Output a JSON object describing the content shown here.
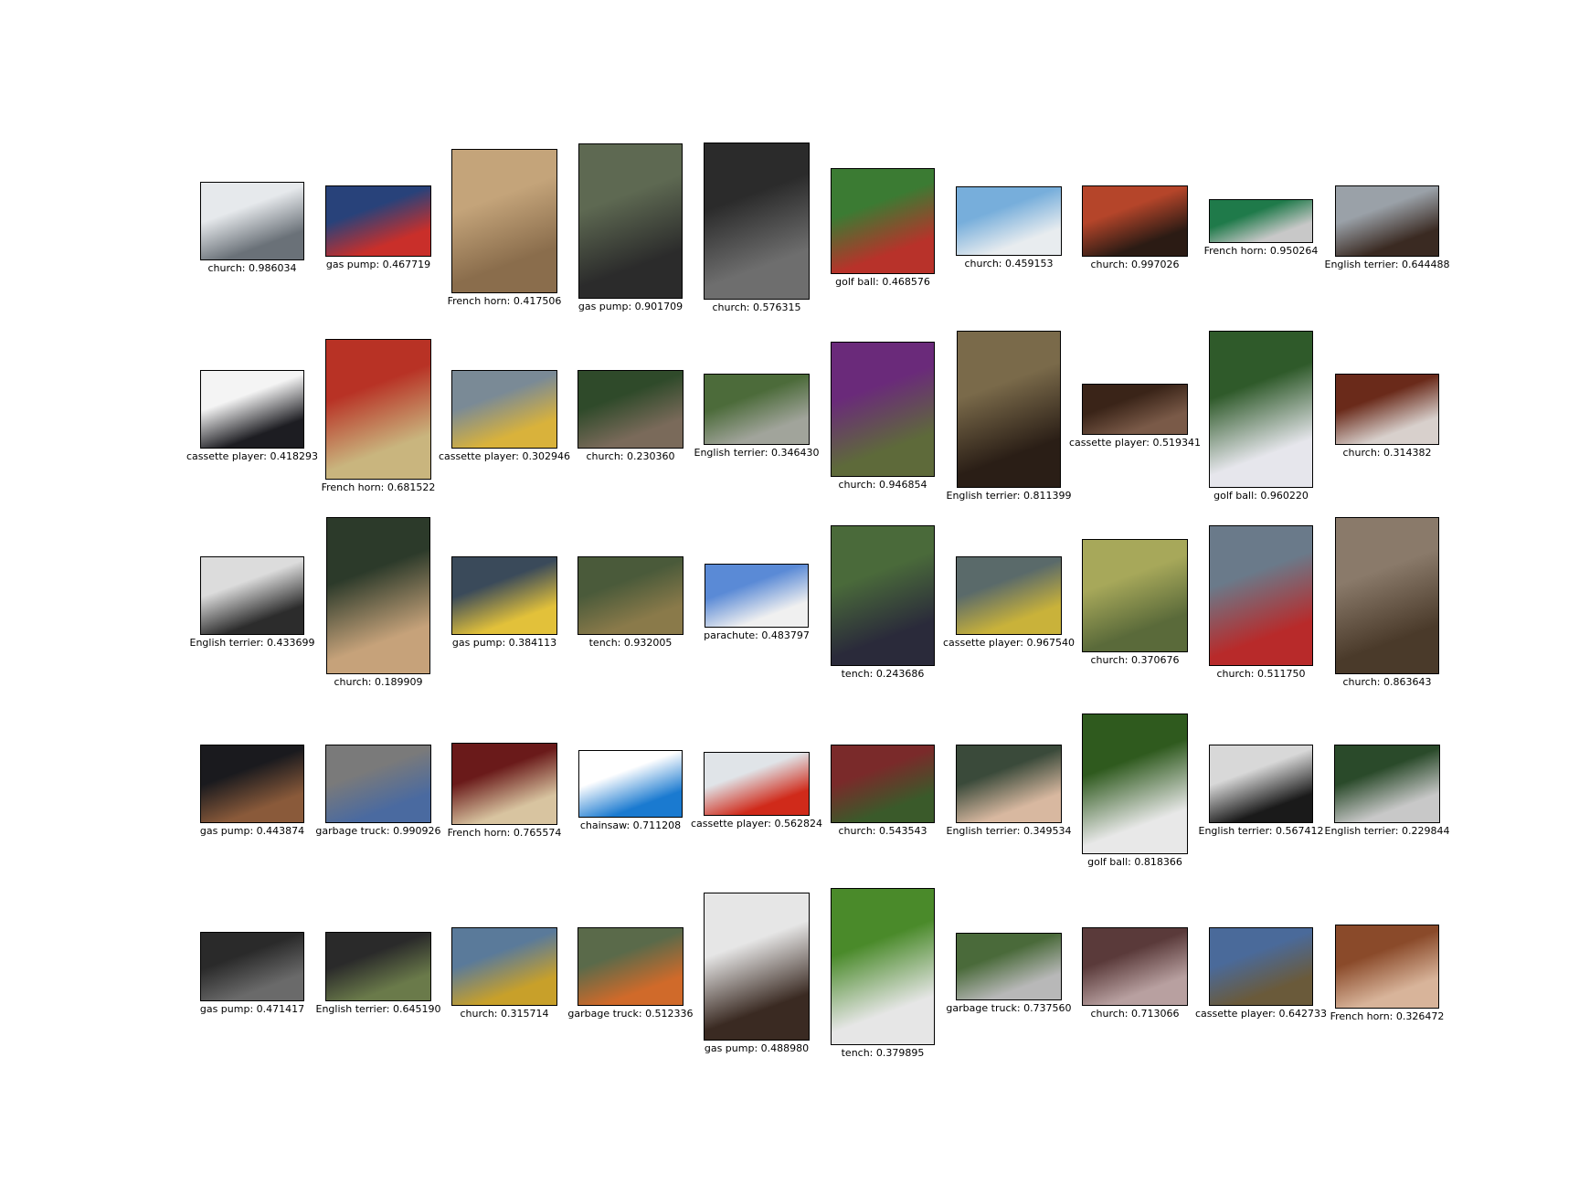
{
  "grid": {
    "rows": [
      [
        {
          "label": "church: 0.986034",
          "image": "garbage-truck-photo",
          "colors": [
            "#e6e9ec",
            "#6a7178"
          ],
          "orientation": "landscape-wide"
        },
        {
          "label": "gas pump: 0.467719",
          "image": "gas-pumps-photo",
          "colors": [
            "#28427a",
            "#c92f2a"
          ],
          "orientation": "landscape"
        },
        {
          "label": "French horn: 0.417506",
          "image": "french-horn-gold-photo",
          "colors": [
            "#c4a47a",
            "#8a6d4c"
          ],
          "orientation": "portrait"
        },
        {
          "label": "gas pump: 0.901709",
          "image": "street-people-photo",
          "colors": [
            "#5e6952",
            "#2b2b2b"
          ],
          "orientation": "portrait-tall"
        },
        {
          "label": "church: 0.576315",
          "image": "french-horn-dark-photo",
          "colors": [
            "#2b2b2b",
            "#6e6e6e"
          ],
          "orientation": "portrait-tall"
        },
        {
          "label": "golf ball: 0.468576",
          "image": "golf-ball-tracer-photo",
          "colors": [
            "#3b7b33",
            "#b8322a"
          ],
          "orientation": "square"
        },
        {
          "label": "church: 0.459153",
          "image": "parachute-beach-photo",
          "colors": [
            "#77aedb",
            "#e8ecef"
          ],
          "orientation": "landscape"
        },
        {
          "label": "church: 0.997026",
          "image": "dog-on-bed-photo",
          "colors": [
            "#b5452a",
            "#2b1b14"
          ],
          "orientation": "landscape"
        },
        {
          "label": "French horn: 0.950264",
          "image": "gas-nozzles-photo",
          "colors": [
            "#1f7a4a",
            "#c8c8c8"
          ],
          "orientation": "landscape-short"
        },
        {
          "label": "English terrier: 0.644488",
          "image": "spaniel-sitting-photo",
          "colors": [
            "#9aa1a8",
            "#3a2a22"
          ],
          "orientation": "landscape"
        }
      ],
      [
        {
          "label": "cassette player: 0.418293",
          "image": "cassette-deck-photo",
          "colors": [
            "#f4f4f4",
            "#1d1d22"
          ],
          "orientation": "landscape-wide"
        },
        {
          "label": "French horn: 0.681522",
          "image": "gas-pump-red-photo",
          "colors": [
            "#b83225",
            "#c9b57e"
          ],
          "orientation": "portrait-tall"
        },
        {
          "label": "cassette player: 0.302946",
          "image": "road-truck-photo",
          "colors": [
            "#7a8a96",
            "#d9b23b"
          ],
          "orientation": "landscape-wide"
        },
        {
          "label": "church: 0.230360",
          "image": "man-outdoors-photo",
          "colors": [
            "#2f4a2a",
            "#7a6a5a"
          ],
          "orientation": "landscape-wide"
        },
        {
          "label": "English terrier: 0.346430",
          "image": "chainsaw-forest-photo",
          "colors": [
            "#4c6b3a",
            "#a1a49b"
          ],
          "orientation": "landscape-wide"
        },
        {
          "label": "church: 0.946854",
          "image": "vintage-pump-photo",
          "colors": [
            "#6a2a7a",
            "#5e6a3a"
          ],
          "orientation": "portrait"
        },
        {
          "label": "English terrier: 0.811399",
          "image": "spaniel-portrait-photo",
          "colors": [
            "#7a6a4a",
            "#2a1e16"
          ],
          "orientation": "portrait-tall"
        },
        {
          "label": "cassette player: 0.519341",
          "image": "boombox-photo",
          "colors": [
            "#3a2418",
            "#7a5a48"
          ],
          "orientation": "landscape-short"
        },
        {
          "label": "golf ball: 0.960220",
          "image": "golf-ball-topflite-photo",
          "colors": [
            "#2f5a2a",
            "#e6e6ec"
          ],
          "orientation": "portrait-tall"
        },
        {
          "label": "church: 0.314382",
          "image": "dog-lying-photo",
          "colors": [
            "#6a2a1a",
            "#d8d0cc"
          ],
          "orientation": "landscape"
        }
      ],
      [
        {
          "label": "English terrier: 0.433699",
          "image": "spaniel-indoor-photo",
          "colors": [
            "#dcdcdc",
            "#2c2c2c"
          ],
          "orientation": "landscape-wide"
        },
        {
          "label": "church: 0.189909",
          "image": "horn-player-photo",
          "colors": [
            "#2c3a2a",
            "#c6a27a"
          ],
          "orientation": "portrait-tall"
        },
        {
          "label": "gas pump: 0.384113",
          "image": "yellow-truck-photo",
          "colors": [
            "#3a4a5a",
            "#e2c13a"
          ],
          "orientation": "landscape-wide"
        },
        {
          "label": "tench: 0.932005",
          "image": "man-with-fish-photo",
          "colors": [
            "#4a5a3a",
            "#8a7a4a"
          ],
          "orientation": "landscape-wide"
        },
        {
          "label": "parachute: 0.483797",
          "image": "golf-ball-sky-photo",
          "colors": [
            "#5a8ad6",
            "#f0f0f0"
          ],
          "orientation": "landscape-short"
        },
        {
          "label": "tench: 0.243686",
          "image": "fisherman-photo",
          "colors": [
            "#4a6a3a",
            "#2a2a3a"
          ],
          "orientation": "portrait"
        },
        {
          "label": "cassette player: 0.967540",
          "image": "aerial-parking-photo",
          "colors": [
            "#5a6a6a",
            "#c9b23a"
          ],
          "orientation": "landscape-wide"
        },
        {
          "label": "church: 0.370676",
          "image": "fish-closeup-photo",
          "colors": [
            "#a7a85a",
            "#5a6a3a"
          ],
          "orientation": "portrait"
        },
        {
          "label": "church: 0.511750",
          "image": "paraglider-photo",
          "colors": [
            "#6a7a8a",
            "#b82a2a"
          ],
          "orientation": "portrait"
        },
        {
          "label": "church: 0.863643",
          "image": "man-chainsaw-house-photo",
          "colors": [
            "#8a7a6a",
            "#4a3a2a"
          ],
          "orientation": "portrait-tall"
        }
      ],
      [
        {
          "label": "gas pump: 0.443874",
          "image": "spaniel-couch-photo",
          "colors": [
            "#1a1a1e",
            "#8a5a3a"
          ],
          "orientation": "landscape-wide"
        },
        {
          "label": "garbage truck: 0.990926",
          "image": "worker-truck-photo",
          "colors": [
            "#7a7a7a",
            "#4a6aa0"
          ],
          "orientation": "landscape-wide"
        },
        {
          "label": "French horn: 0.765574",
          "image": "kids-horn-photo",
          "colors": [
            "#6a1a1a",
            "#d8c4a0"
          ],
          "orientation": "landscape-wide"
        },
        {
          "label": "chainsaw: 0.711208",
          "image": "kinzo-chainsaw-ad",
          "colors": [
            "#ffffff",
            "#1a7ad0"
          ],
          "orientation": "landscape-wide"
        },
        {
          "label": "cassette player: 0.562824",
          "image": "red-chainsaw-photo",
          "colors": [
            "#e0e4e8",
            "#d02a1a"
          ],
          "orientation": "landscape-short"
        },
        {
          "label": "church: 0.543543",
          "image": "spaniel-christmas-photo",
          "colors": [
            "#7a2a2a",
            "#3a5a2a"
          ],
          "orientation": "landscape-wide"
        },
        {
          "label": "English terrier: 0.349534",
          "image": "hand-fish-water-photo",
          "colors": [
            "#3a4a3a",
            "#d8b8a0"
          ],
          "orientation": "landscape-wide"
        },
        {
          "label": "golf ball: 0.818366",
          "image": "golf-ball-grass-photo",
          "colors": [
            "#2f5a1e",
            "#e8e8e8"
          ],
          "orientation": "portrait"
        },
        {
          "label": "English terrier: 0.567412",
          "image": "spaniel-snow-photo",
          "colors": [
            "#d8d8d8",
            "#1a1a1a"
          ],
          "orientation": "landscape-wide"
        },
        {
          "label": "English terrier: 0.229844",
          "image": "tanker-truck-photo",
          "colors": [
            "#2a4a2a",
            "#c8c8c8"
          ],
          "orientation": "landscape-wide"
        }
      ],
      [
        {
          "label": "gas pump: 0.471417",
          "image": "gas-station-photo",
          "colors": [
            "#2a2a2a",
            "#6a6a6a"
          ],
          "orientation": "landscape-wide"
        },
        {
          "label": "English terrier: 0.645190",
          "image": "spaniel-grass-photo",
          "colors": [
            "#2a2a2a",
            "#6a7a4a"
          ],
          "orientation": "landscape-wide"
        },
        {
          "label": "church: 0.315714",
          "image": "boy-fish-photo",
          "colors": [
            "#5a7a9a",
            "#c8a02a"
          ],
          "orientation": "landscape-wide"
        },
        {
          "label": "garbage truck: 0.512336",
          "image": "orange-truck-photo",
          "colors": [
            "#5a6a4a",
            "#d06a2a"
          ],
          "orientation": "landscape-wide"
        },
        {
          "label": "gas pump: 0.488980",
          "image": "spaniel-bars-photo",
          "colors": [
            "#e6e6e6",
            "#3a2a22"
          ],
          "orientation": "portrait-tall"
        },
        {
          "label": "tench: 0.379895",
          "image": "golf-ball-bottle-photo",
          "colors": [
            "#4a8a2a",
            "#e6e6e6"
          ],
          "orientation": "portrait-tall"
        },
        {
          "label": "garbage truck: 0.737560",
          "image": "man-fish-lake-photo",
          "colors": [
            "#4a6a3a",
            "#b8b8b8"
          ],
          "orientation": "landscape-wide"
        },
        {
          "label": "church: 0.713066",
          "image": "dog-sofa-photo",
          "colors": [
            "#5a3a3a",
            "#b8a0a0"
          ],
          "orientation": "landscape"
        },
        {
          "label": "cassette player: 0.642733",
          "image": "men-market-photo",
          "colors": [
            "#4a6a9a",
            "#6a5a3a"
          ],
          "orientation": "landscape"
        },
        {
          "label": "French horn: 0.326472",
          "image": "french-horn-leather-photo",
          "colors": [
            "#8a4a2a",
            "#d8b49a"
          ],
          "orientation": "landscape"
        }
      ]
    ]
  }
}
